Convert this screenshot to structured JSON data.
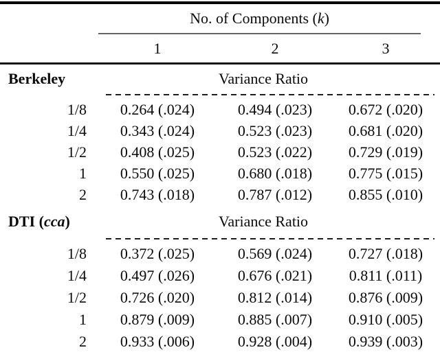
{
  "header": {
    "title_pre": "No. of Components (",
    "title_k": "k",
    "title_post": ")",
    "columns": [
      "1",
      "2",
      "3"
    ]
  },
  "sections": [
    {
      "name_pre": "Berkeley",
      "name_italic": "",
      "name_post": "",
      "subheader": "Variance Ratio",
      "rows": [
        {
          "label": "1/8",
          "values": [
            "0.264 (.024)",
            "0.494 (.023)",
            "0.672 (.020)"
          ]
        },
        {
          "label": "1/4",
          "values": [
            "0.343 (.024)",
            "0.523 (.023)",
            "0.681 (.020)"
          ]
        },
        {
          "label": "1/2",
          "values": [
            "0.408 (.025)",
            "0.523 (.022)",
            "0.729 (.019)"
          ]
        },
        {
          "label": "1",
          "values": [
            "0.550 (.025)",
            "0.680 (.018)",
            "0.775 (.015)"
          ]
        },
        {
          "label": "2",
          "values": [
            "0.743 (.018)",
            "0.787 (.012)",
            "0.855 (.010)"
          ]
        }
      ]
    },
    {
      "name_pre": "DTI (",
      "name_italic": "cca",
      "name_post": ")",
      "subheader": "Variance Ratio",
      "rows": [
        {
          "label": "1/8",
          "values": [
            "0.372 (.025)",
            "0.569 (.024)",
            "0.727 (.018)"
          ]
        },
        {
          "label": "1/4",
          "values": [
            "0.497 (.026)",
            "0.676 (.021)",
            "0.811 (.011)"
          ]
        },
        {
          "label": "1/2",
          "values": [
            "0.726 (.020)",
            "0.812 (.014)",
            "0.876 (.009)"
          ]
        },
        {
          "label": "1",
          "values": [
            "0.879 (.009)",
            "0.885 (.007)",
            "0.910 (.005)"
          ]
        },
        {
          "label": "2",
          "values": [
            "0.933 (.006)",
            "0.928 (.004)",
            "0.939 (.003)"
          ]
        }
      ]
    }
  ],
  "colors": {
    "top_rule": "#000000",
    "mid_rule": "#161616",
    "cmid_rule": "#666666",
    "dash_rule": "#1c1c1c",
    "text": "#0a0a0a",
    "background": "#ffffff"
  }
}
